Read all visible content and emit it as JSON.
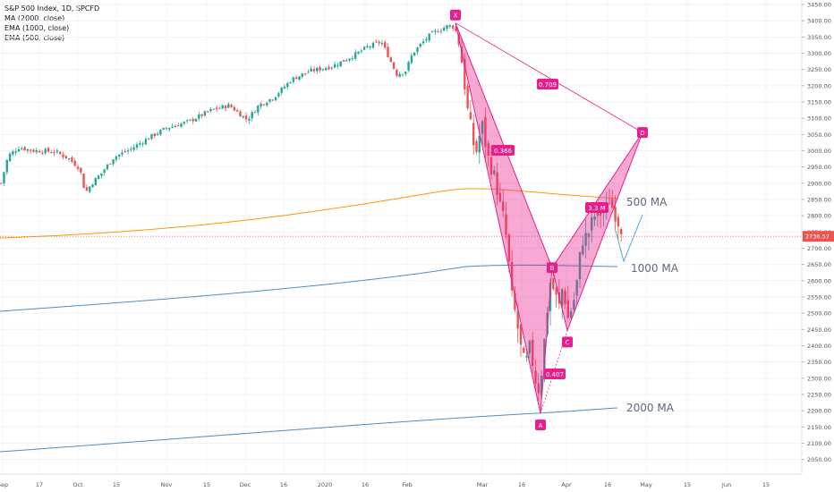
{
  "chart_data": {
    "type": "candlestick",
    "title": "S&P 500 Index, 1D, SPCFD",
    "indicators": [
      "MA (2000, close)",
      "EMA (1000, close)",
      "EMA (500, close)"
    ],
    "last_price": "2736.57",
    "y_ticks": [
      "3450.00",
      "3400.00",
      "3350.00",
      "3300.00",
      "3250.00",
      "3200.00",
      "3150.00",
      "3100.00",
      "3050.00",
      "3000.00",
      "2950.00",
      "2900.00",
      "2850.00",
      "2800.00",
      "2750.00",
      "2700.00",
      "2650.00",
      "2600.00",
      "2550.00",
      "2500.00",
      "2450.00",
      "2400.00",
      "2350.00",
      "2300.00",
      "2250.00",
      "2200.00",
      "2150.00",
      "2100.00",
      "2050.00"
    ],
    "x_ticks": [
      "Sep",
      "17",
      "Oct",
      "15",
      "Nov",
      "15",
      "Dec",
      "16",
      "2020",
      "16",
      "Feb",
      "Mar",
      "16",
      "Apr",
      "16",
      "May",
      "15",
      "Jun",
      "15"
    ],
    "ylim": [
      2010,
      3470
    ],
    "pattern_points": [
      {
        "label": "X",
        "price": 3393
      },
      {
        "label": "A",
        "price": 2192
      },
      {
        "label": "B",
        "price": 2640
      },
      {
        "label": "C",
        "price": 2447
      },
      {
        "label": "D",
        "price": 3056
      }
    ],
    "ratios": [
      "0.709",
      "0.366",
      "0.407",
      "3.3 M"
    ],
    "ma_labels": [
      {
        "text": "500 MA",
        "price": 2854
      },
      {
        "text": "1000 MA",
        "price": 2640
      },
      {
        "text": "2000 MA",
        "price": 2219
      }
    ],
    "colors": {
      "up": "#26a69a",
      "down": "#ef5350",
      "pattern": "#e91e8c",
      "ema500": "#ff9800",
      "ema1000": "#4a8ec2",
      "ma2000": "#4a8ec2",
      "projection": "#4fa8e0"
    }
  }
}
